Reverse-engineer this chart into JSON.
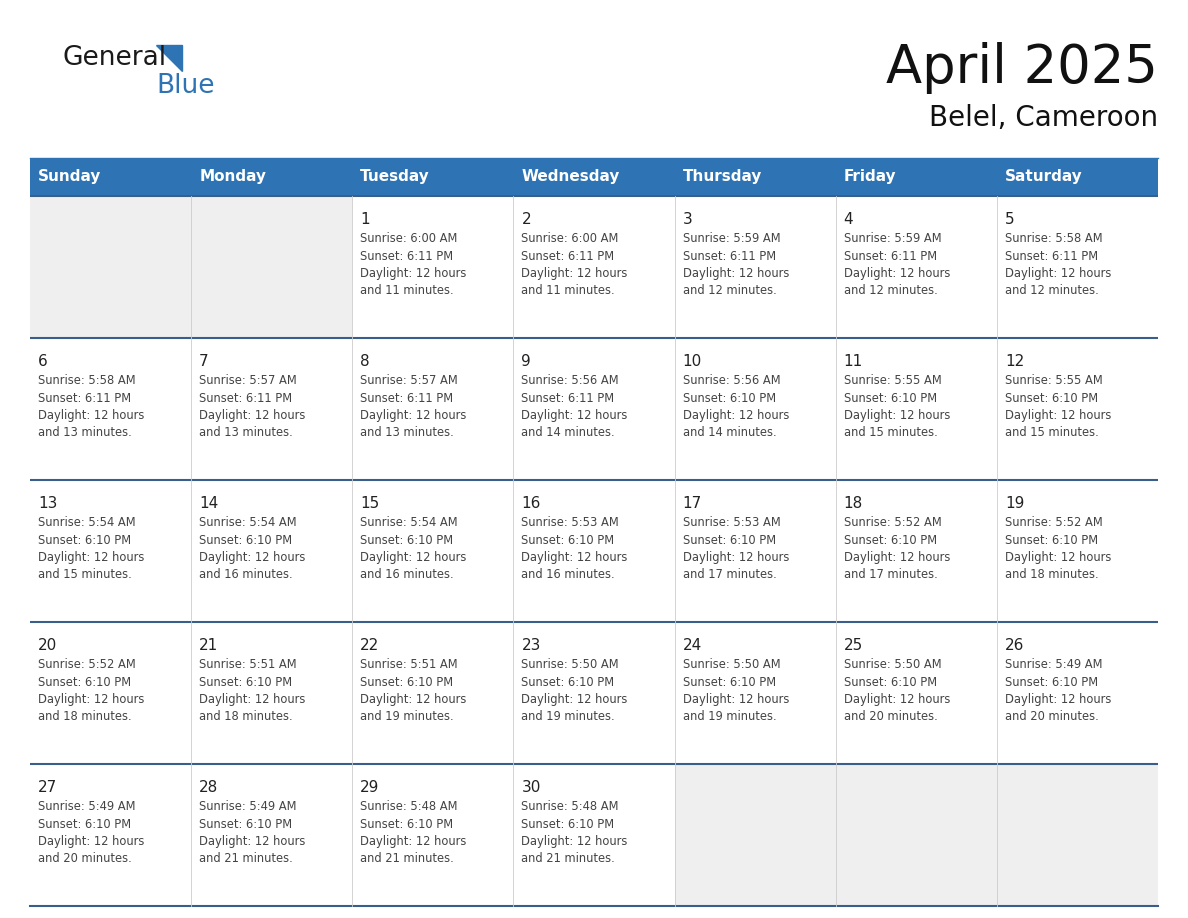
{
  "title": "April 2025",
  "subtitle": "Belel, Cameroon",
  "header_bg": "#2E74B5",
  "header_text_color": "#FFFFFF",
  "days_of_week": [
    "Sunday",
    "Monday",
    "Tuesday",
    "Wednesday",
    "Thursday",
    "Friday",
    "Saturday"
  ],
  "cell_bg_gray": "#EFEFEF",
  "cell_bg_white": "#FFFFFF",
  "row_separator_color": "#3A5E8C",
  "text_color": "#444444",
  "day_number_color": "#222222",
  "logo_text_color": "#1a1a1a",
  "logo_blue_color": "#2E74B5",
  "calendar": [
    [
      {
        "day": null,
        "sunrise": null,
        "sunset": null,
        "daylight": null,
        "empty": true
      },
      {
        "day": null,
        "sunrise": null,
        "sunset": null,
        "daylight": null,
        "empty": true
      },
      {
        "day": 1,
        "sunrise": "Sunrise: 6:00 AM",
        "sunset": "Sunset: 6:11 PM",
        "daylight": "Daylight: 12 hours\nand 11 minutes.",
        "empty": false
      },
      {
        "day": 2,
        "sunrise": "Sunrise: 6:00 AM",
        "sunset": "Sunset: 6:11 PM",
        "daylight": "Daylight: 12 hours\nand 11 minutes.",
        "empty": false
      },
      {
        "day": 3,
        "sunrise": "Sunrise: 5:59 AM",
        "sunset": "Sunset: 6:11 PM",
        "daylight": "Daylight: 12 hours\nand 12 minutes.",
        "empty": false
      },
      {
        "day": 4,
        "sunrise": "Sunrise: 5:59 AM",
        "sunset": "Sunset: 6:11 PM",
        "daylight": "Daylight: 12 hours\nand 12 minutes.",
        "empty": false
      },
      {
        "day": 5,
        "sunrise": "Sunrise: 5:58 AM",
        "sunset": "Sunset: 6:11 PM",
        "daylight": "Daylight: 12 hours\nand 12 minutes.",
        "empty": false
      }
    ],
    [
      {
        "day": 6,
        "sunrise": "Sunrise: 5:58 AM",
        "sunset": "Sunset: 6:11 PM",
        "daylight": "Daylight: 12 hours\nand 13 minutes.",
        "empty": false
      },
      {
        "day": 7,
        "sunrise": "Sunrise: 5:57 AM",
        "sunset": "Sunset: 6:11 PM",
        "daylight": "Daylight: 12 hours\nand 13 minutes.",
        "empty": false
      },
      {
        "day": 8,
        "sunrise": "Sunrise: 5:57 AM",
        "sunset": "Sunset: 6:11 PM",
        "daylight": "Daylight: 12 hours\nand 13 minutes.",
        "empty": false
      },
      {
        "day": 9,
        "sunrise": "Sunrise: 5:56 AM",
        "sunset": "Sunset: 6:11 PM",
        "daylight": "Daylight: 12 hours\nand 14 minutes.",
        "empty": false
      },
      {
        "day": 10,
        "sunrise": "Sunrise: 5:56 AM",
        "sunset": "Sunset: 6:10 PM",
        "daylight": "Daylight: 12 hours\nand 14 minutes.",
        "empty": false
      },
      {
        "day": 11,
        "sunrise": "Sunrise: 5:55 AM",
        "sunset": "Sunset: 6:10 PM",
        "daylight": "Daylight: 12 hours\nand 15 minutes.",
        "empty": false
      },
      {
        "day": 12,
        "sunrise": "Sunrise: 5:55 AM",
        "sunset": "Sunset: 6:10 PM",
        "daylight": "Daylight: 12 hours\nand 15 minutes.",
        "empty": false
      }
    ],
    [
      {
        "day": 13,
        "sunrise": "Sunrise: 5:54 AM",
        "sunset": "Sunset: 6:10 PM",
        "daylight": "Daylight: 12 hours\nand 15 minutes.",
        "empty": false
      },
      {
        "day": 14,
        "sunrise": "Sunrise: 5:54 AM",
        "sunset": "Sunset: 6:10 PM",
        "daylight": "Daylight: 12 hours\nand 16 minutes.",
        "empty": false
      },
      {
        "day": 15,
        "sunrise": "Sunrise: 5:54 AM",
        "sunset": "Sunset: 6:10 PM",
        "daylight": "Daylight: 12 hours\nand 16 minutes.",
        "empty": false
      },
      {
        "day": 16,
        "sunrise": "Sunrise: 5:53 AM",
        "sunset": "Sunset: 6:10 PM",
        "daylight": "Daylight: 12 hours\nand 16 minutes.",
        "empty": false
      },
      {
        "day": 17,
        "sunrise": "Sunrise: 5:53 AM",
        "sunset": "Sunset: 6:10 PM",
        "daylight": "Daylight: 12 hours\nand 17 minutes.",
        "empty": false
      },
      {
        "day": 18,
        "sunrise": "Sunrise: 5:52 AM",
        "sunset": "Sunset: 6:10 PM",
        "daylight": "Daylight: 12 hours\nand 17 minutes.",
        "empty": false
      },
      {
        "day": 19,
        "sunrise": "Sunrise: 5:52 AM",
        "sunset": "Sunset: 6:10 PM",
        "daylight": "Daylight: 12 hours\nand 18 minutes.",
        "empty": false
      }
    ],
    [
      {
        "day": 20,
        "sunrise": "Sunrise: 5:52 AM",
        "sunset": "Sunset: 6:10 PM",
        "daylight": "Daylight: 12 hours\nand 18 minutes.",
        "empty": false
      },
      {
        "day": 21,
        "sunrise": "Sunrise: 5:51 AM",
        "sunset": "Sunset: 6:10 PM",
        "daylight": "Daylight: 12 hours\nand 18 minutes.",
        "empty": false
      },
      {
        "day": 22,
        "sunrise": "Sunrise: 5:51 AM",
        "sunset": "Sunset: 6:10 PM",
        "daylight": "Daylight: 12 hours\nand 19 minutes.",
        "empty": false
      },
      {
        "day": 23,
        "sunrise": "Sunrise: 5:50 AM",
        "sunset": "Sunset: 6:10 PM",
        "daylight": "Daylight: 12 hours\nand 19 minutes.",
        "empty": false
      },
      {
        "day": 24,
        "sunrise": "Sunrise: 5:50 AM",
        "sunset": "Sunset: 6:10 PM",
        "daylight": "Daylight: 12 hours\nand 19 minutes.",
        "empty": false
      },
      {
        "day": 25,
        "sunrise": "Sunrise: 5:50 AM",
        "sunset": "Sunset: 6:10 PM",
        "daylight": "Daylight: 12 hours\nand 20 minutes.",
        "empty": false
      },
      {
        "day": 26,
        "sunrise": "Sunrise: 5:49 AM",
        "sunset": "Sunset: 6:10 PM",
        "daylight": "Daylight: 12 hours\nand 20 minutes.",
        "empty": false
      }
    ],
    [
      {
        "day": 27,
        "sunrise": "Sunrise: 5:49 AM",
        "sunset": "Sunset: 6:10 PM",
        "daylight": "Daylight: 12 hours\nand 20 minutes.",
        "empty": false
      },
      {
        "day": 28,
        "sunrise": "Sunrise: 5:49 AM",
        "sunset": "Sunset: 6:10 PM",
        "daylight": "Daylight: 12 hours\nand 21 minutes.",
        "empty": false
      },
      {
        "day": 29,
        "sunrise": "Sunrise: 5:48 AM",
        "sunset": "Sunset: 6:10 PM",
        "daylight": "Daylight: 12 hours\nand 21 minutes.",
        "empty": false
      },
      {
        "day": 30,
        "sunrise": "Sunrise: 5:48 AM",
        "sunset": "Sunset: 6:10 PM",
        "daylight": "Daylight: 12 hours\nand 21 minutes.",
        "empty": false
      },
      {
        "day": null,
        "sunrise": null,
        "sunset": null,
        "daylight": null,
        "empty": true
      },
      {
        "day": null,
        "sunrise": null,
        "sunset": null,
        "daylight": null,
        "empty": true
      },
      {
        "day": null,
        "sunrise": null,
        "sunset": null,
        "daylight": null,
        "empty": true
      }
    ]
  ]
}
